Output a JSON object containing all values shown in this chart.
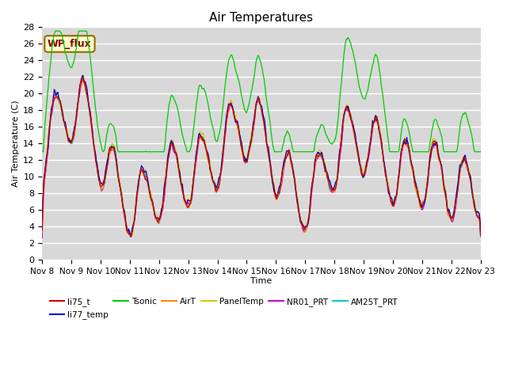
{
  "title": "Air Temperatures",
  "xlabel": "Time",
  "ylabel": "Air Temperature (C)",
  "ylim": [
    0,
    28
  ],
  "x_tick_labels": [
    "Nov 8",
    "Nov 9",
    "Nov 10",
    "Nov 11",
    "Nov 12",
    "Nov 13",
    "Nov 14",
    "Nov 15",
    "Nov 16",
    "Nov 17",
    "Nov 18",
    "Nov 19",
    "Nov 20",
    "Nov 21",
    "Nov 22",
    "Nov 23"
  ],
  "series_colors": {
    "li75_t": "#cc0000",
    "li77_temp": "#0000cc",
    "Tsonic": "#00cc00",
    "AirT": "#ff8800",
    "PanelTemp": "#cccc00",
    "NR01_PRT": "#cc00cc",
    "AM25T_PRT": "#00cccc"
  },
  "bg_color": "#d8d8d8",
  "grid_color": "#ffffff",
  "annotation_text": "WP_flux",
  "annotation_facecolor": "#ffffcc",
  "annotation_edgecolor": "#996600",
  "annotation_textcolor": "#880000",
  "legend_ncol": 6,
  "figsize": [
    6.4,
    4.8
  ],
  "dpi": 100
}
